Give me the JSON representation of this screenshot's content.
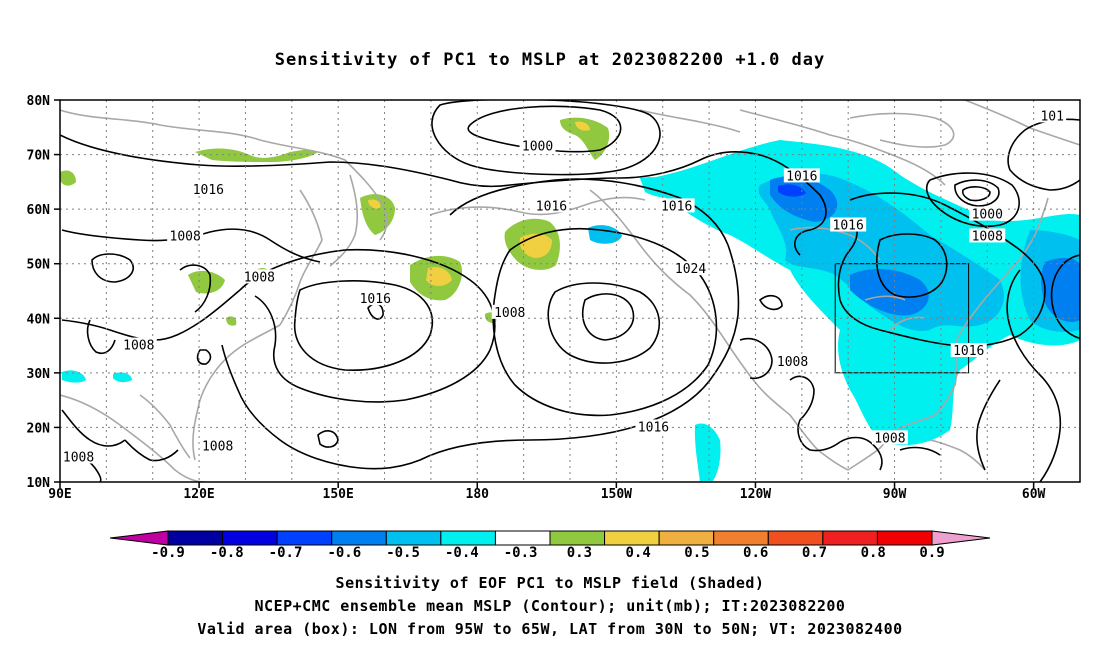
{
  "title": "Sensitivity of PC1 to MSLP at 2023082200 +1.0 day",
  "map": {
    "lat_labels": [
      "80N",
      "70N",
      "60N",
      "50N",
      "40N",
      "30N",
      "20N",
      "10N"
    ],
    "lon_labels": [
      "90E",
      "120E",
      "150E",
      "180",
      "150W",
      "120W",
      "90W",
      "60W"
    ],
    "valid_box": {
      "lon_from": "95W",
      "lon_to": "65W",
      "lat_from": "30N",
      "lat_to": "50N"
    },
    "contour_labels": [
      {
        "text": "1000",
        "lon": 193,
        "lat": 71.5
      },
      {
        "text": "1016",
        "lon": 122,
        "lat": 63.5
      },
      {
        "text": "1016",
        "lon": 196,
        "lat": 60.5
      },
      {
        "text": "1016",
        "lon": 223,
        "lat": 60.5
      },
      {
        "text": "1016",
        "lon": 250,
        "lat": 66
      },
      {
        "text": "1016",
        "lon": 260,
        "lat": 57
      },
      {
        "text": "1008",
        "lon": 117,
        "lat": 55
      },
      {
        "text": "1008",
        "lon": 133,
        "lat": 47.5
      },
      {
        "text": "1016",
        "lon": 158,
        "lat": 43.5
      },
      {
        "text": "1008",
        "lon": 187,
        "lat": 41
      },
      {
        "text": "1024",
        "lon": 226,
        "lat": 49
      },
      {
        "text": "1000",
        "lon": 290,
        "lat": 59
      },
      {
        "text": "1008",
        "lon": 290,
        "lat": 55
      },
      {
        "text": "1008",
        "lon": 107,
        "lat": 35
      },
      {
        "text": "1008",
        "lon": 248,
        "lat": 32
      },
      {
        "text": "1016",
        "lon": 286,
        "lat": 34
      },
      {
        "text": "1016",
        "lon": 218,
        "lat": 20
      },
      {
        "text": "1008",
        "lon": 269,
        "lat": 18
      },
      {
        "text": "1008",
        "lon": 124,
        "lat": 16.5
      },
      {
        "text": "1008",
        "lon": 94,
        "lat": 14.5
      },
      {
        "text": "101",
        "lon": 304,
        "lat": 77
      }
    ]
  },
  "colorbar": {
    "labels": [
      "-0.9",
      "-0.8",
      "-0.7",
      "-0.6",
      "-0.5",
      "-0.4",
      "-0.3",
      "0.3",
      "0.4",
      "0.5",
      "0.6",
      "0.7",
      "0.8",
      "0.9"
    ],
    "colors": [
      "#c000a0",
      "#0000a0",
      "#0000e0",
      "#0040ff",
      "#0080f0",
      "#00c0f0",
      "#00f0f0",
      "#ffffff",
      "#90c840",
      "#f0d040",
      "#f0b040",
      "#f08030",
      "#f05020",
      "#f02020",
      "#f00000",
      "#f0a0d0"
    ]
  },
  "captions": {
    "line1": "Sensitivity of EOF PC1 to MSLP field (Shaded)",
    "line2": "NCEP+CMC ensemble mean MSLP (Contour); unit(mb); IT:2023082200",
    "line3": "Valid area (box): LON from 95W to 65W, LAT from 30N to 50N; VT: 2023082400"
  }
}
